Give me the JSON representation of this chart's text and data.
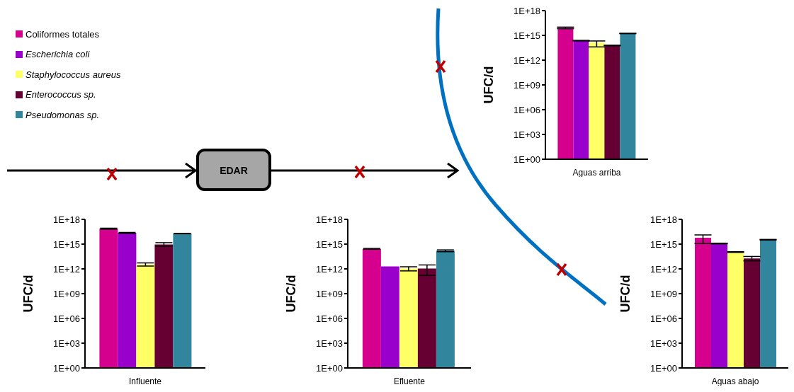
{
  "chart_data": [
    {
      "type": "bar",
      "xlabel": "Aguas arriba",
      "ylabel": "UFC/d",
      "categories": [
        null
      ],
      "log": true,
      "legend": "top left",
      "ylim": [
        1,
        1e+18
      ],
      "yticks": [
        {
          "value": 1,
          "label": "1E+00"
        },
        {
          "value": 1000.0,
          "label": "1E+03"
        },
        {
          "value": 1000000.0,
          "label": "1E+06"
        },
        {
          "value": 1000000000.0,
          "label": "1E+09"
        },
        {
          "value": 1000000000000.0,
          "label": "1E+12"
        },
        {
          "value": 1000000000000000.0,
          "label": "1E+15"
        },
        {
          "value": 1e+18,
          "label": "1E+18"
        }
      ],
      "series": [
        {
          "name": "Coliformes totales",
          "color": "#d6008f",
          "values": [
            8000000000000000.0
          ],
          "errors": [
            [
              6500000000000000.0,
              1e+16
            ]
          ]
        },
        {
          "name": "Escherichia coli",
          "color": "#9900cc",
          "values": [
            230000000000000.0
          ],
          "errors": [
            [
              210000000000000.0,
              250000000000000.0
            ]
          ]
        },
        {
          "name": "Staphylococcus aureus",
          "color": "#ffff66",
          "values": [
            130000000000000.0
          ],
          "errors": [
            [
              40000000000000.0,
              210000000000000.0
            ]
          ]
        },
        {
          "name": "Enterococcus sp.",
          "color": "#660033",
          "values": [
            60000000000000.0
          ],
          "errors": [
            [
              55000000000000.0,
              65000000000000.0
            ]
          ]
        },
        {
          "name": "Pseudomonas sp.",
          "color": "#31859c",
          "values": [
            1700000000000000.0
          ],
          "errors": [
            [
              1600000000000000.0,
              1800000000000000.0
            ]
          ]
        }
      ]
    },
    {
      "type": "bar",
      "xlabel": "Influente",
      "ylabel": "UFC/d",
      "categories": [
        null
      ],
      "log": true,
      "annotations": [
        "EDAR"
      ],
      "ylim": [
        1,
        1e+18
      ],
      "yticks": [
        {
          "value": 1,
          "label": "1E+00"
        },
        {
          "value": 1000.0,
          "label": "1E+03"
        },
        {
          "value": 1000000.0,
          "label": "1E+06"
        },
        {
          "value": 1000000000.0,
          "label": "1E+09"
        },
        {
          "value": 1000000000000.0,
          "label": "1E+12"
        },
        {
          "value": 1000000000000000.0,
          "label": "1E+15"
        },
        {
          "value": 1e+18,
          "label": "1E+18"
        }
      ],
      "series": [
        {
          "color": "#d6008f",
          "values": [
            7.5e+16
          ],
          "errors": [
            [
              6.5e+16,
              8.5e+16
            ]
          ]
        },
        {
          "color": "#9900cc",
          "values": [
            2.3e+16
          ],
          "errors": [
            [
              2e+16,
              2.6e+16
            ]
          ]
        },
        {
          "color": "#ffff66",
          "values": [
            3500000000000.0
          ],
          "errors": [
            [
              2200000000000.0,
              5300000000000.0
            ]
          ]
        },
        {
          "color": "#660033",
          "values": [
            900000000000000.0
          ],
          "errors": [
            [
              550000000000000.0,
              1500000000000000.0
            ]
          ]
        },
        {
          "color": "#31859c",
          "values": [
            1.9e+16
          ],
          "errors": [
            [
              1.8e+16,
              2e+16
            ]
          ]
        }
      ]
    },
    {
      "type": "bar",
      "xlabel": "Efluente",
      "ylabel": "UFC/d",
      "categories": [
        null
      ],
      "log": true,
      "ylim": [
        1,
        1e+18
      ],
      "yticks": [
        {
          "value": 1,
          "label": "1E+00"
        },
        {
          "value": 1000.0,
          "label": "1E+03"
        },
        {
          "value": 1000000.0,
          "label": "1E+06"
        },
        {
          "value": 1000000000.0,
          "label": "1E+09"
        },
        {
          "value": 1000000000000.0,
          "label": "1E+12"
        },
        {
          "value": 1000000000000000.0,
          "label": "1E+15"
        },
        {
          "value": 1e+18,
          "label": "1E+18"
        }
      ],
      "series": [
        {
          "color": "#d6008f",
          "values": [
            270000000000000.0
          ],
          "errors": [
            [
              240000000000000.0,
              300000000000000.0
            ]
          ]
        },
        {
          "color": "#9900cc",
          "values": [
            2000000000000.0
          ],
          "errors": [
            null
          ]
        },
        {
          "color": "#ffff66",
          "values": [
            1100000000000.0
          ],
          "errors": [
            [
              570000000000.0,
              1800000000000.0
            ]
          ]
        },
        {
          "color": "#660033",
          "values": [
            1100000000000.0
          ],
          "errors": [
            [
              160000000000.0,
              3000000000000.0
            ]
          ]
        },
        {
          "color": "#31859c",
          "values": [
            160000000000000.0
          ],
          "errors": [
            [
              120000000000000.0,
              200000000000000.0
            ]
          ]
        }
      ]
    },
    {
      "type": "bar",
      "xlabel": "Aguas abajo",
      "ylabel": "UFC/d",
      "categories": [
        null
      ],
      "log": true,
      "ylim": [
        1,
        1e+18
      ],
      "yticks": [
        {
          "value": 1,
          "label": "1E+00"
        },
        {
          "value": 1000.0,
          "label": "1E+03"
        },
        {
          "value": 1000000.0,
          "label": "1E+06"
        },
        {
          "value": 1000000000.0,
          "label": "1E+09"
        },
        {
          "value": 1000000000000.0,
          "label": "1E+12"
        },
        {
          "value": 1000000000000000.0,
          "label": "1E+15"
        },
        {
          "value": 1e+18,
          "label": "1E+18"
        }
      ],
      "series": [
        {
          "color": "#d6008f",
          "values": [
            5800000000000000.0
          ],
          "errors": [
            [
              1200000000000000.0,
              1.3e+16
            ]
          ]
        },
        {
          "color": "#9900cc",
          "values": [
            1200000000000000.0
          ],
          "errors": [
            [
              1100000000000000.0,
              1300000000000000.0
            ]
          ]
        },
        {
          "color": "#ffff66",
          "values": [
            110000000000000.0
          ],
          "errors": [
            [
              100000000000000.0,
              120000000000000.0
            ]
          ]
        },
        {
          "color": "#660033",
          "values": [
            18000000000000.0
          ],
          "errors": [
            [
              9500000000000.0,
              32000000000000.0
            ]
          ]
        },
        {
          "color": "#31859c",
          "values": [
            3400000000000000.0
          ],
          "errors": [
            [
              3100000000000000.0,
              3700000000000000.0
            ]
          ]
        }
      ]
    }
  ]
}
